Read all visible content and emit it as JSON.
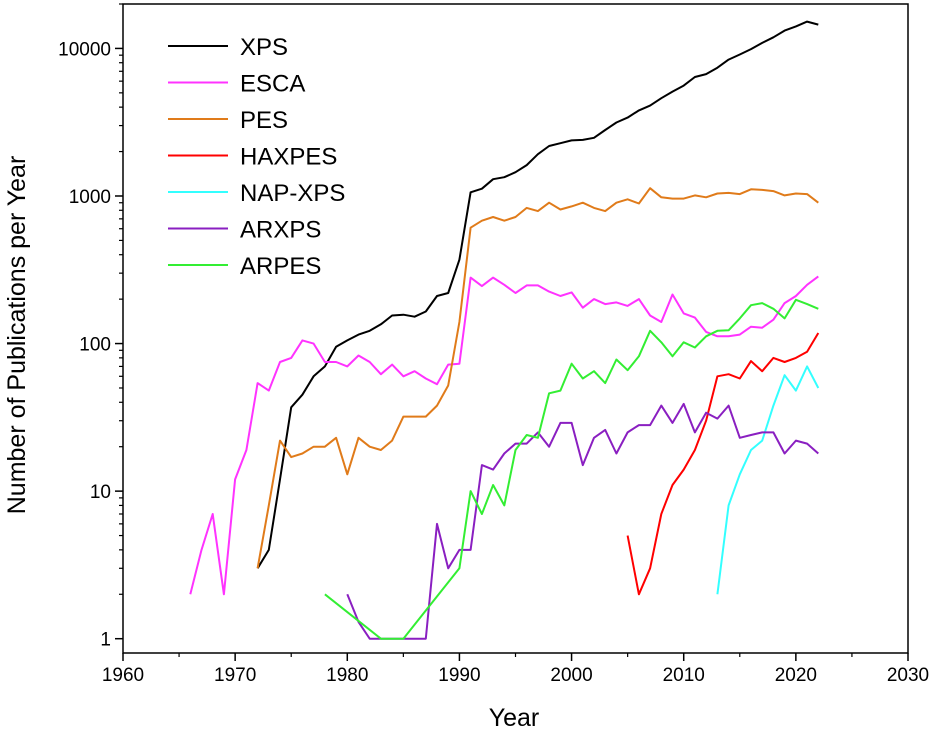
{
  "chart_data": {
    "type": "line",
    "xlabel": "Year",
    "ylabel": "Number of Publications per Year",
    "x_scale": "linear",
    "y_scale": "log",
    "xlim": [
      1960,
      2030
    ],
    "ylim": [
      0.8,
      20000
    ],
    "x_ticks": [
      1960,
      1970,
      1980,
      1990,
      2000,
      2010,
      2020,
      2030
    ],
    "y_ticks": [
      1,
      10,
      100,
      1000,
      10000
    ],
    "x_tick_labels": [
      "1960",
      "1970",
      "1980",
      "1990",
      "2000",
      "2010",
      "2020",
      "2030"
    ],
    "y_tick_labels": [
      "1",
      "10",
      "100",
      "1000",
      "10000"
    ],
    "grid": false,
    "legend_position": "top-left",
    "series": [
      {
        "name": "XPS",
        "color": "#000000",
        "x": [
          1972,
          1973,
          1974,
          1975,
          1976,
          1977,
          1978,
          1979,
          1980,
          1981,
          1982,
          1983,
          1984,
          1985,
          1986,
          1987,
          1988,
          1989,
          1990,
          1991,
          1992,
          1993,
          1994,
          1995,
          1996,
          1997,
          1998,
          1999,
          2000,
          2001,
          2002,
          2003,
          2004,
          2005,
          2006,
          2007,
          2008,
          2009,
          2010,
          2011,
          2012,
          2013,
          2014,
          2015,
          2016,
          2017,
          2018,
          2019,
          2020,
          2021,
          2022
        ],
        "y": [
          3,
          4,
          12,
          37,
          45,
          60,
          70,
          95,
          105,
          115,
          122,
          135,
          155,
          157,
          152,
          165,
          210,
          220,
          370,
          1060,
          1120,
          1300,
          1340,
          1450,
          1620,
          1920,
          2180,
          2280,
          2380,
          2400,
          2480,
          2800,
          3150,
          3400,
          3800,
          4100,
          4600,
          5100,
          5600,
          6400,
          6700,
          7400,
          8400,
          9100,
          9900,
          10900,
          11900,
          13200,
          14100,
          15200,
          14500
        ]
      },
      {
        "name": "ESCA",
        "color": "#ff33ff",
        "x": [
          1966,
          1967,
          1968,
          1969,
          1970,
          1971,
          1972,
          1973,
          1974,
          1975,
          1976,
          1977,
          1978,
          1979,
          1980,
          1981,
          1982,
          1983,
          1984,
          1985,
          1986,
          1987,
          1988,
          1989,
          1990,
          1991,
          1992,
          1993,
          1994,
          1995,
          1996,
          1997,
          1998,
          1999,
          2000,
          2001,
          2002,
          2003,
          2004,
          2005,
          2006,
          2007,
          2008,
          2009,
          2010,
          2011,
          2012,
          2013,
          2014,
          2015,
          2016,
          2017,
          2018,
          2019,
          2020,
          2021,
          2022
        ],
        "y": [
          2,
          4,
          7,
          2,
          12,
          19,
          54,
          48,
          75,
          80,
          105,
          100,
          75,
          75,
          70,
          83,
          75,
          62,
          72,
          60,
          65,
          58,
          53,
          72,
          73,
          280,
          245,
          280,
          250,
          220,
          248,
          248,
          225,
          210,
          222,
          175,
          200,
          185,
          190,
          180,
          200,
          155,
          140,
          215,
          160,
          150,
          120,
          112,
          112,
          115,
          130,
          128,
          145,
          188,
          210,
          250,
          285
        ]
      },
      {
        "name": "PES",
        "color": "#e07b1a",
        "x": [
          1972,
          1973,
          1974,
          1975,
          1976,
          1977,
          1978,
          1979,
          1980,
          1981,
          1982,
          1983,
          1984,
          1985,
          1986,
          1987,
          1988,
          1989,
          1990,
          1991,
          1992,
          1993,
          1994,
          1995,
          1996,
          1997,
          1998,
          1999,
          2000,
          2001,
          2002,
          2003,
          2004,
          2005,
          2006,
          2007,
          2008,
          2009,
          2010,
          2011,
          2012,
          2013,
          2014,
          2015,
          2016,
          2017,
          2018,
          2019,
          2020,
          2021,
          2022
        ],
        "y": [
          3,
          8,
          22,
          17,
          18,
          20,
          20,
          23,
          13,
          23,
          20,
          19,
          22,
          32,
          32,
          32,
          38,
          52,
          140,
          610,
          680,
          720,
          680,
          720,
          830,
          790,
          900,
          810,
          850,
          900,
          830,
          790,
          900,
          950,
          890,
          1130,
          980,
          960,
          960,
          1010,
          980,
          1040,
          1050,
          1030,
          1110,
          1100,
          1080,
          1010,
          1040,
          1030,
          900
        ]
      },
      {
        "name": "HAXPES",
        "color": "#ff0000",
        "x": [
          2005,
          2006,
          2007,
          2008,
          2009,
          2010,
          2011,
          2012,
          2013,
          2014,
          2015,
          2016,
          2017,
          2018,
          2019,
          2020,
          2021,
          2022
        ],
        "y": [
          5,
          2,
          3,
          7,
          11,
          14,
          19,
          30,
          60,
          62,
          58,
          76,
          65,
          80,
          75,
          80,
          88,
          118
        ]
      },
      {
        "name": "NAP-XPS",
        "color": "#33ffff",
        "x": [
          2013,
          2014,
          2015,
          2016,
          2017,
          2018,
          2019,
          2020,
          2021,
          2022
        ],
        "y": [
          2,
          8,
          13,
          19,
          22,
          38,
          61,
          48,
          70,
          50
        ]
      },
      {
        "name": "ARXPS",
        "color": "#8a1fc1",
        "x": [
          1980,
          1981,
          1982,
          1983,
          1984,
          1985,
          1986,
          1987,
          1988,
          1989,
          1990,
          1991,
          1992,
          1993,
          1994,
          1995,
          1996,
          1997,
          1998,
          1999,
          2000,
          2001,
          2002,
          2003,
          2004,
          2005,
          2006,
          2007,
          2008,
          2009,
          2010,
          2011,
          2012,
          2013,
          2014,
          2015,
          2016,
          2017,
          2018,
          2019,
          2020,
          2021,
          2022
        ],
        "y": [
          2,
          1.3,
          1,
          1,
          1,
          1,
          1,
          1,
          6,
          3,
          4,
          4,
          15,
          14,
          18,
          21,
          21,
          25,
          20,
          29,
          29,
          15,
          23,
          26,
          18,
          25,
          28,
          28,
          38,
          29,
          39,
          25,
          34,
          31,
          38,
          23,
          24,
          25,
          25,
          18,
          22,
          21,
          18
        ]
      },
      {
        "name": "ARPES",
        "color": "#33ee33",
        "x": [
          1978,
          1983,
          1985,
          1990,
          1991,
          1992,
          1993,
          1994,
          1995,
          1996,
          1997,
          1998,
          1999,
          2000,
          2001,
          2002,
          2003,
          2004,
          2005,
          2006,
          2007,
          2008,
          2009,
          2010,
          2011,
          2012,
          2013,
          2014,
          2015,
          2016,
          2017,
          2018,
          2019,
          2020,
          2021,
          2022
        ],
        "y": [
          2,
          1,
          1,
          3,
          10,
          7,
          11,
          8,
          19,
          24,
          23,
          46,
          48,
          73,
          58,
          65,
          54,
          78,
          66,
          82,
          122,
          102,
          82,
          102,
          94,
          112,
          122,
          123,
          148,
          182,
          188,
          172,
          148,
          198,
          185,
          172
        ]
      }
    ]
  }
}
